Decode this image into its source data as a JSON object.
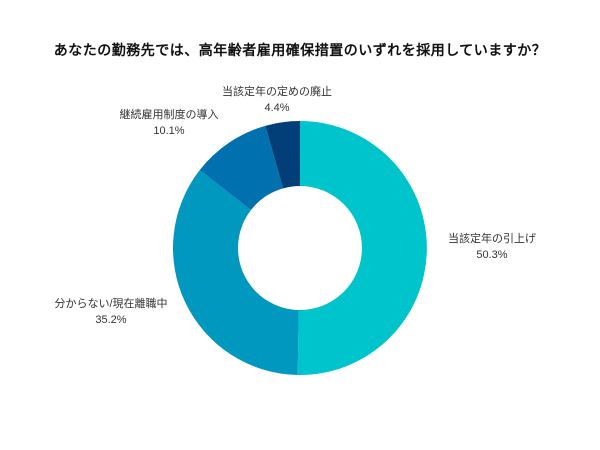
{
  "chart_data": {
    "type": "pie",
    "subtype": "donut",
    "title": "あなたの勤務先では、高年齢者雇用確保措置のいずれを採用していますか？",
    "unit": "%",
    "direction": "clockwise",
    "start_angle_deg": 0,
    "inner_radius_ratio": 0.49,
    "background_color": "#ffffff",
    "label_color": "#333333",
    "title_color": "#111111",
    "legend": "none",
    "segments": [
      {
        "label": "当該定年の引上げ",
        "value": 50.3,
        "display": "50.3%",
        "color": "#00C4CC"
      },
      {
        "label": "分からない/現在離職中",
        "value": 35.2,
        "display": "35.2%",
        "color": "#0098BF"
      },
      {
        "label": "継続雇用制度の導入",
        "value": 10.1,
        "display": "10.1%",
        "color": "#0071AE"
      },
      {
        "label": "当該定年の定めの廃止",
        "value": 4.4,
        "display": "4.4%",
        "color": "#023F78"
      }
    ]
  }
}
